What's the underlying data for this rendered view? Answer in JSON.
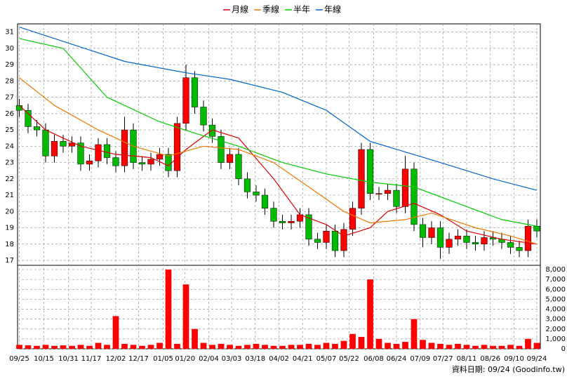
{
  "chart_data": {
    "type": "candlestick",
    "up_color": "#ff0000",
    "down_color": "#00bb00",
    "grid": true,
    "xlim": [
      -0.2,
      59.4
    ],
    "xticks": [
      {
        "value": 0,
        "label": "09/25"
      },
      {
        "value": 2.8,
        "label": "10/15"
      },
      {
        "value": 5.6,
        "label": "10/31"
      },
      {
        "value": 8.2,
        "label": "11/17"
      },
      {
        "value": 11,
        "label": "12/02"
      },
      {
        "value": 13.6,
        "label": "12/17"
      },
      {
        "value": 16.4,
        "label": "01/05"
      },
      {
        "value": 18.9,
        "label": "01/20"
      },
      {
        "value": 21.6,
        "label": "02/04"
      },
      {
        "value": 24.2,
        "label": "03/03"
      },
      {
        "value": 26.9,
        "label": "03/18"
      },
      {
        "value": 29.6,
        "label": "04/02"
      },
      {
        "value": 32.3,
        "label": "04/21"
      },
      {
        "value": 35,
        "label": "05/07"
      },
      {
        "value": 37.6,
        "label": "05/22"
      },
      {
        "value": 40.4,
        "label": "06/08"
      },
      {
        "value": 43,
        "label": "06/24"
      },
      {
        "value": 45.7,
        "label": "07/09"
      },
      {
        "value": 48.3,
        "label": "07/27"
      },
      {
        "value": 51,
        "label": "08/11"
      },
      {
        "value": 53.7,
        "label": "08/26"
      },
      {
        "value": 56.4,
        "label": "09/10"
      },
      {
        "value": 59,
        "label": "09/24"
      }
    ],
    "ylim": [
      16.7,
      31.5
    ],
    "yticks": [
      17,
      18,
      19,
      20,
      21,
      22,
      23,
      24,
      25,
      26,
      27,
      28,
      29,
      30,
      31
    ],
    "open": [
      26.5,
      26.2,
      25.2,
      25.0,
      23.4,
      24.3,
      24.0,
      24.2,
      22.9,
      23.1,
      24.1,
      23.3,
      22.8,
      25.0,
      23.0,
      22.9,
      23.2,
      23.5,
      22.5,
      25.4,
      28.2,
      26.4,
      25.3,
      24.6,
      23.0,
      23.5,
      22.0,
      21.2,
      21.0,
      20.2,
      19.4,
      19.3,
      19.4,
      19.8,
      18.3,
      18.1,
      18.8,
      17.6,
      18.9,
      20.2,
      23.8,
      21.1,
      21.1,
      21.3,
      20.3,
      22.6,
      19.2,
      18.4,
      19.0,
      17.8,
      18.3,
      18.5,
      18.1,
      18.0,
      18.4,
      18.3,
      18.1,
      17.8,
      17.6,
      19.1
    ],
    "high": [
      26.9,
      26.6,
      25.6,
      25.4,
      24.7,
      24.7,
      24.6,
      24.6,
      23.5,
      24.5,
      24.5,
      23.7,
      25.8,
      25.4,
      23.4,
      23.6,
      23.9,
      23.9,
      25.8,
      29.0,
      28.6,
      26.8,
      25.7,
      25.0,
      23.9,
      23.9,
      22.4,
      21.6,
      21.4,
      20.6,
      19.8,
      19.8,
      20.2,
      20.2,
      18.7,
      19.2,
      19.2,
      19.3,
      20.6,
      24.2,
      24.2,
      21.5,
      21.7,
      21.7,
      23.4,
      23.0,
      19.6,
      19.4,
      19.4,
      18.7,
      18.9,
      18.9,
      18.5,
      18.8,
      18.8,
      18.7,
      18.5,
      18.2,
      19.5,
      19.5
    ],
    "low": [
      25.8,
      24.8,
      24.6,
      23.0,
      23.0,
      23.6,
      23.6,
      22.5,
      22.5,
      22.7,
      22.9,
      22.4,
      22.4,
      22.6,
      22.5,
      22.5,
      22.8,
      22.1,
      22.1,
      25.0,
      26.0,
      24.9,
      24.2,
      22.6,
      22.6,
      21.6,
      20.8,
      20.6,
      19.8,
      19.0,
      18.9,
      18.9,
      19.0,
      17.9,
      17.7,
      17.7,
      17.2,
      17.2,
      18.5,
      19.8,
      20.7,
      20.7,
      20.7,
      19.9,
      19.9,
      18.8,
      17.8,
      18.0,
      17.1,
      17.4,
      17.9,
      17.7,
      17.6,
      17.6,
      17.9,
      17.7,
      17.4,
      17.2,
      17.2,
      18.4
    ],
    "close": [
      26.2,
      25.2,
      25.0,
      23.4,
      24.3,
      24.0,
      24.2,
      22.9,
      23.1,
      24.1,
      23.3,
      22.8,
      25.0,
      23.0,
      22.9,
      23.2,
      23.5,
      22.5,
      25.4,
      28.2,
      26.4,
      25.3,
      24.6,
      23.0,
      23.5,
      22.0,
      21.2,
      21.0,
      20.2,
      19.4,
      19.3,
      19.4,
      19.8,
      18.3,
      18.1,
      18.8,
      17.6,
      18.9,
      20.2,
      23.8,
      21.1,
      21.1,
      21.3,
      20.3,
      22.6,
      19.2,
      18.4,
      19.0,
      17.8,
      18.3,
      18.5,
      18.1,
      18.0,
      18.4,
      18.3,
      18.1,
      17.8,
      17.6,
      19.1,
      18.8
    ],
    "series": [
      {
        "name": "月線",
        "color": "#dd0000",
        "x": [
          0,
          3,
          7,
          11,
          15,
          17,
          19,
          22,
          25,
          29,
          32,
          35,
          37,
          40,
          42,
          45,
          48,
          51,
          55,
          59
        ],
        "values": [
          26.5,
          25.0,
          24.0,
          23.5,
          23.3,
          22.8,
          23.8,
          25.0,
          24.5,
          22.0,
          19.8,
          19.2,
          18.5,
          19.0,
          20.0,
          20.5,
          19.8,
          18.8,
          18.3,
          18.0
        ]
      },
      {
        "name": "季線",
        "color": "#ee7700",
        "x": [
          0,
          4,
          9,
          13,
          17,
          21,
          25,
          29,
          33,
          37,
          40,
          44,
          47,
          52,
          56,
          59
        ],
        "values": [
          28.2,
          26.5,
          25.0,
          24.0,
          23.4,
          24.0,
          23.8,
          23.0,
          21.5,
          20.0,
          19.3,
          19.5,
          19.9,
          19.0,
          18.5,
          18.0
        ]
      },
      {
        "name": "半年",
        "color": "#00cc00",
        "x": [
          0,
          5,
          10,
          16,
          20,
          25,
          30,
          35,
          40,
          45,
          50,
          55,
          59
        ],
        "values": [
          30.6,
          30.0,
          27.0,
          25.5,
          24.8,
          24.0,
          23.0,
          22.3,
          21.8,
          21.5,
          20.5,
          19.5,
          19.1
        ]
      },
      {
        "name": "年線",
        "color": "#0066cc",
        "x": [
          0,
          12,
          19,
          24,
          30,
          35,
          40,
          48,
          54,
          59
        ],
        "values": [
          31.3,
          29.2,
          28.5,
          28.1,
          27.3,
          26.2,
          24.3,
          23.0,
          22.0,
          21.3
        ]
      }
    ],
    "volume": {
      "color": "#ff0000",
      "ylim": [
        0,
        8430
      ],
      "yticks": [
        0,
        {
          "value": 1000,
          "label": "1,000"
        },
        {
          "value": 2000,
          "label": "2,000"
        },
        {
          "value": 3000,
          "label": "3,000"
        },
        {
          "value": 4000,
          "label": "4,000"
        },
        {
          "value": 5000,
          "label": "5,000"
        },
        {
          "value": 6000,
          "label": "6,000"
        },
        {
          "value": 7000,
          "label": "7,000"
        },
        {
          "value": 8000,
          "label": "8,000"
        }
      ],
      "values": [
        400,
        350,
        300,
        400,
        300,
        350,
        300,
        400,
        300,
        600,
        400,
        3300,
        500,
        400,
        300,
        400,
        600,
        8000,
        500,
        6500,
        2000,
        600,
        400,
        500,
        400,
        300,
        400,
        500,
        400,
        300,
        300,
        400,
        400,
        500,
        400,
        600,
        500,
        800,
        1500,
        1200,
        7000,
        1000,
        600,
        500,
        700,
        3000,
        900,
        600,
        500,
        400,
        500,
        400,
        300,
        400,
        300,
        300,
        400,
        300,
        1000,
        600
      ]
    },
    "footnote": "資料日期: 09/24 (Goodinfo.tw)"
  }
}
